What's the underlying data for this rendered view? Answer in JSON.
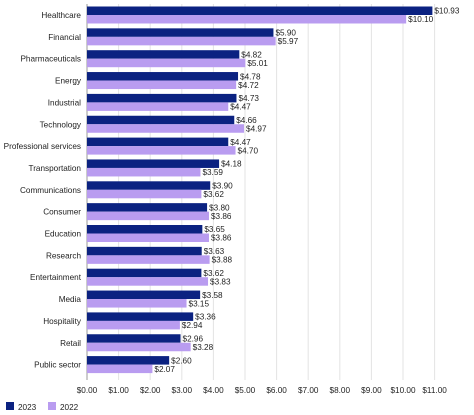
{
  "chart_data": {
    "type": "bar",
    "orientation": "horizontal",
    "categories": [
      "Healthcare",
      "Financial",
      "Pharmaceuticals",
      "Energy",
      "Industrial",
      "Technology",
      "Professional services",
      "Transportation",
      "Communications",
      "Consumer",
      "Education",
      "Research",
      "Entertainment",
      "Media",
      "Hospitality",
      "Retail",
      "Public sector"
    ],
    "series": [
      {
        "name": "2023",
        "color": "#0b2281",
        "values": [
          10.93,
          5.9,
          4.82,
          4.78,
          4.73,
          4.66,
          4.47,
          4.18,
          3.9,
          3.8,
          3.65,
          3.63,
          3.62,
          3.58,
          3.36,
          2.96,
          2.6
        ],
        "labels": [
          "$10.93",
          "$5.90",
          "$4.82",
          "$4.78",
          "$4.73",
          "$4.66",
          "$4.47",
          "$4.18",
          "$3.90",
          "$3.80",
          "$3.65",
          "$3.63",
          "$3.62",
          "$3.58",
          "$3.36",
          "$2.96",
          "$2.60"
        ]
      },
      {
        "name": "2022",
        "color": "#b99cf0",
        "values": [
          10.1,
          5.97,
          5.01,
          4.72,
          4.47,
          4.97,
          4.7,
          3.59,
          3.62,
          3.86,
          3.86,
          3.88,
          3.83,
          3.15,
          2.94,
          3.28,
          2.07
        ],
        "labels": [
          "$10.10",
          "$5.97",
          "$5.01",
          "$4.72",
          "$4.47",
          "$4.97",
          "$4.70",
          "$3.59",
          "$3.62",
          "$3.86",
          "$3.86",
          "$3.88",
          "$3.83",
          "$3.15",
          "$2.94",
          "$3.28",
          "$2.07"
        ]
      }
    ],
    "xlim": [
      0,
      11
    ],
    "xticks": [
      0,
      1,
      2,
      3,
      4,
      5,
      6,
      7,
      8,
      9,
      10,
      11
    ],
    "xtick_labels": [
      "$0.00",
      "$1.00",
      "$2.00",
      "$3.00",
      "$4.00",
      "$5.00",
      "$6.00",
      "$7.00",
      "$8.00",
      "$9.00",
      "$10.00",
      "$11.00"
    ],
    "grid": "vertical",
    "legend": "bottom-left"
  }
}
